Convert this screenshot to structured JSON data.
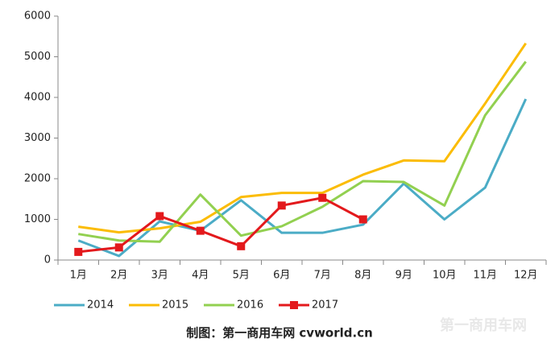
{
  "chart_data": {
    "type": "line",
    "categories": [
      "1月",
      "2月",
      "3月",
      "4月",
      "5月",
      "6月",
      "7月",
      "8月",
      "9月",
      "10月",
      "11月",
      "12月"
    ],
    "series": [
      {
        "name": "2014",
        "color": "#4bacc6",
        "values": [
          480,
          100,
          950,
          720,
          1470,
          670,
          670,
          870,
          1880,
          1000,
          1780,
          3960
        ]
      },
      {
        "name": "2015",
        "color": "#fbbc05",
        "values": [
          820,
          680,
          780,
          940,
          1550,
          1650,
          1650,
          2100,
          2450,
          2430,
          3850,
          5330
        ]
      },
      {
        "name": "2016",
        "color": "#92d050",
        "values": [
          640,
          480,
          450,
          1610,
          600,
          830,
          1310,
          1940,
          1920,
          1340,
          3560,
          4880
        ]
      },
      {
        "name": "2017",
        "color": "#e3191c",
        "marker": "square",
        "values": [
          200,
          310,
          1080,
          720,
          340,
          1340,
          1530,
          1000,
          null,
          null,
          null,
          null
        ]
      }
    ],
    "ylim": [
      0,
      6000
    ],
    "yticks": [
      0,
      1000,
      2000,
      3000,
      4000,
      5000,
      6000
    ],
    "grid": false,
    "legend": "bottom",
    "footer": "制图：第一商用车网 cvworld.cn",
    "watermark": "第一商用车网"
  }
}
